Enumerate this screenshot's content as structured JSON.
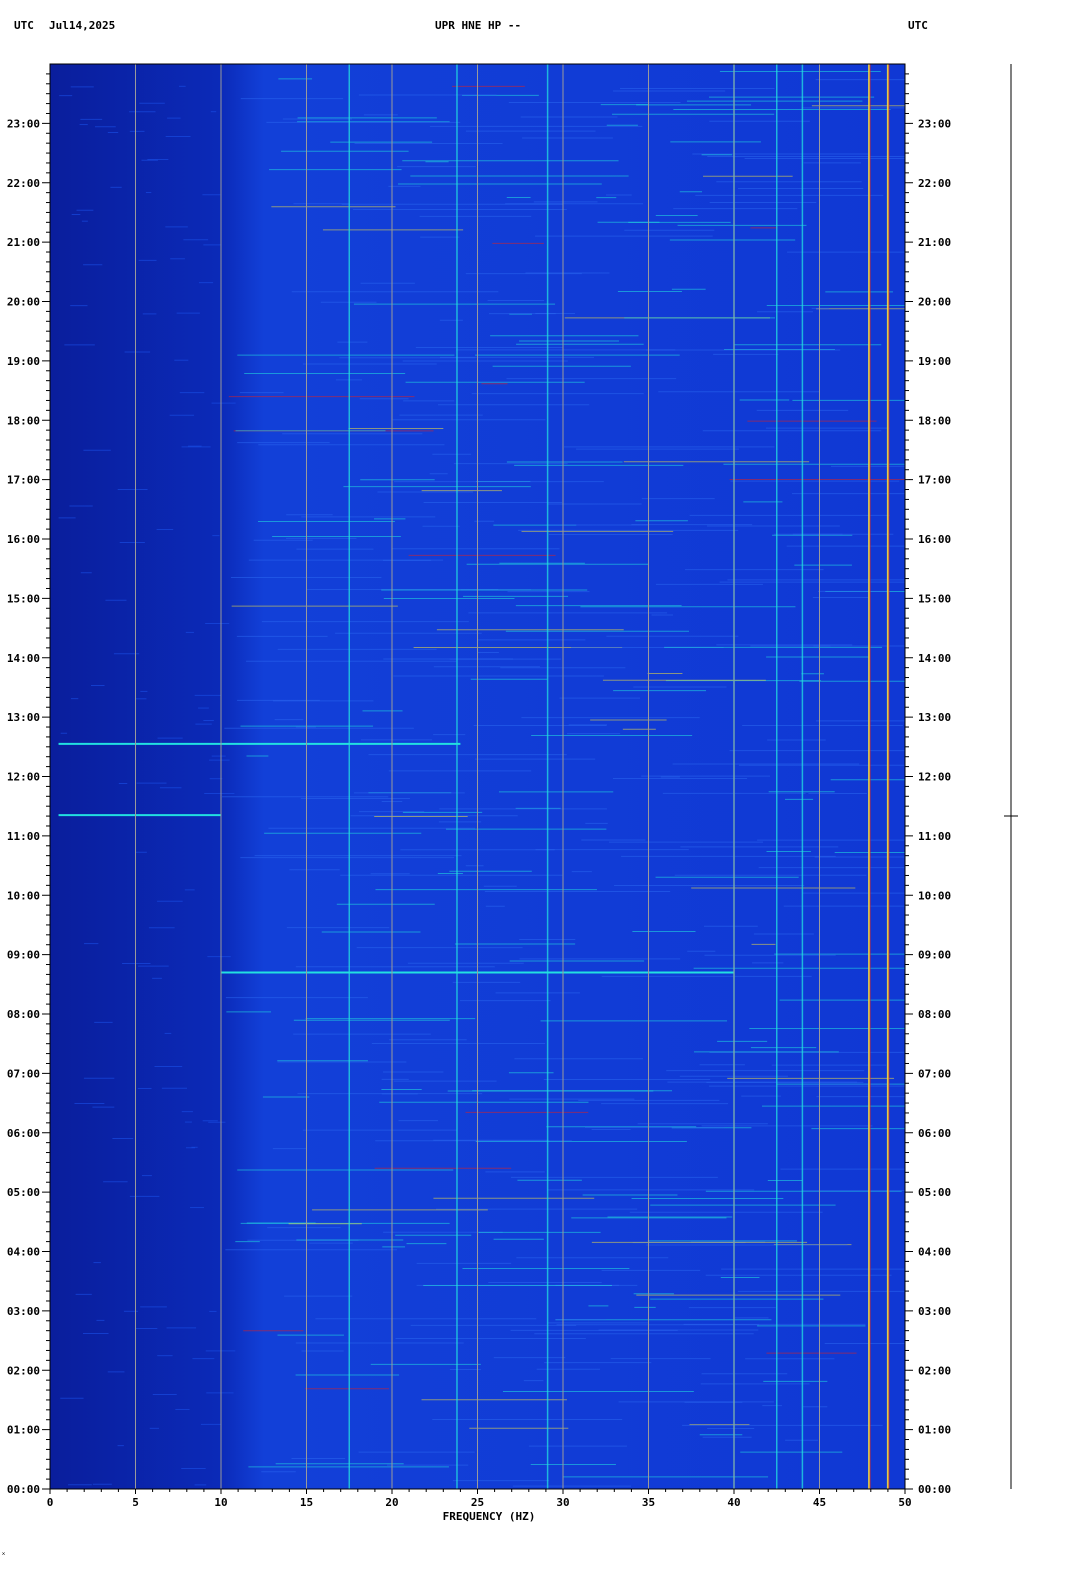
{
  "header": {
    "left_tz": "UTC",
    "date": "Jul14,2025",
    "title": "UPR HNE HP --",
    "right_tz": "UTC"
  },
  "colors": {
    "background": "#0a2fd0",
    "low_freq_band": "#0a1e9c",
    "grid": "#9a9a9a",
    "cyan": "#22e0e0",
    "yellow": "#f0e040",
    "red": "#e02020"
  },
  "chart_data": {
    "type": "heatmap",
    "title": "UPR HNE HP --",
    "xlabel": "FREQUENCY (HZ)",
    "ylabel": "UTC",
    "xlim": [
      0,
      50
    ],
    "ylim_hours": [
      0,
      24
    ],
    "x_ticks": [
      "0",
      "5",
      "10",
      "15",
      "20",
      "25",
      "30",
      "35",
      "40",
      "45",
      "50"
    ],
    "y_ticks_left": [
      "00:00",
      "01:00",
      "02:00",
      "03:00",
      "04:00",
      "05:00",
      "06:00",
      "07:00",
      "08:00",
      "09:00",
      "10:00",
      "11:00",
      "12:00",
      "13:00",
      "14:00",
      "15:00",
      "16:00",
      "17:00",
      "18:00",
      "19:00",
      "20:00",
      "21:00",
      "22:00",
      "23:00"
    ],
    "y_ticks_right": [
      "00:00",
      "01:00",
      "02:00",
      "03:00",
      "04:00",
      "05:00",
      "06:00",
      "07:00",
      "08:00",
      "09:00",
      "10:00",
      "11:00",
      "12:00",
      "13:00",
      "14:00",
      "15:00",
      "16:00",
      "17:00",
      "18:00",
      "19:00",
      "20:00",
      "21:00",
      "22:00",
      "23:00"
    ],
    "persistent_lines_hz": [
      17.5,
      23.8,
      29.1,
      40.0,
      42.5,
      44.0,
      47.9,
      49.0
    ],
    "strong_events": [
      {
        "time_hours": 12.55,
        "freq_range": [
          0.5,
          24
        ]
      },
      {
        "time_hours": 11.35,
        "freq_range": [
          0.5,
          10
        ]
      },
      {
        "time_hours": 8.7,
        "freq_range": [
          10,
          40
        ]
      }
    ],
    "grid": true
  }
}
